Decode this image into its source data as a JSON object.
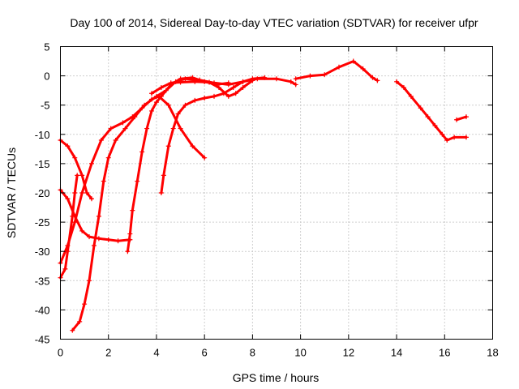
{
  "chart_data": {
    "type": "scatter",
    "title": "Day 100 of 2014, Sidereal Day-to-day VTEC variation (SDTVAR) for receiver ufpr",
    "xlabel": "GPS time / hours",
    "ylabel": "SDTVAR / TECUs",
    "xlim": [
      0,
      18
    ],
    "ylim": [
      -45,
      5
    ],
    "xticks": [
      0,
      2,
      4,
      6,
      8,
      10,
      12,
      14,
      16,
      18
    ],
    "yticks": [
      5,
      0,
      -5,
      -10,
      -15,
      -20,
      -25,
      -30,
      -35,
      -40,
      -45
    ],
    "grid": true,
    "color": "#ff0000",
    "marker": "plus",
    "series": [
      {
        "name": "track-1",
        "points": [
          [
            0,
            -11
          ],
          [
            0.3,
            -12
          ],
          [
            0.6,
            -14
          ],
          [
            0.9,
            -17
          ],
          [
            1.1,
            -20
          ],
          [
            1.3,
            -21
          ]
        ]
      },
      {
        "name": "track-2",
        "points": [
          [
            0,
            -19.5
          ],
          [
            0.3,
            -21
          ],
          [
            0.6,
            -24
          ],
          [
            0.9,
            -26.5
          ],
          [
            1.2,
            -27.5
          ],
          [
            1.6,
            -27.8
          ],
          [
            2.0,
            -28
          ],
          [
            2.4,
            -28.2
          ],
          [
            2.9,
            -28
          ]
        ]
      },
      {
        "name": "track-3",
        "points": [
          [
            0,
            -34.5
          ],
          [
            0.2,
            -33
          ],
          [
            0.3,
            -30
          ],
          [
            0.5,
            -24
          ],
          [
            0.6,
            -20
          ],
          [
            0.7,
            -17
          ]
        ]
      },
      {
        "name": "track-4",
        "points": [
          [
            0,
            -32
          ],
          [
            0.3,
            -29
          ],
          [
            0.6,
            -25
          ],
          [
            0.9,
            -20
          ],
          [
            1.3,
            -15
          ],
          [
            1.7,
            -11
          ],
          [
            2.1,
            -9
          ],
          [
            2.6,
            -8
          ],
          [
            3.0,
            -7
          ],
          [
            3.4,
            -5.5
          ],
          [
            3.8,
            -4
          ],
          [
            4.1,
            -3.5
          ],
          [
            4.5,
            -5
          ],
          [
            5.0,
            -9
          ],
          [
            5.5,
            -12
          ],
          [
            6.0,
            -14
          ]
        ]
      },
      {
        "name": "track-5",
        "points": [
          [
            0.5,
            -43.5
          ],
          [
            0.8,
            -42
          ],
          [
            1.0,
            -39
          ],
          [
            1.2,
            -35
          ],
          [
            1.4,
            -29
          ],
          [
            1.6,
            -24
          ],
          [
            1.8,
            -18
          ],
          [
            2.0,
            -14
          ],
          [
            2.3,
            -11
          ],
          [
            2.7,
            -9
          ],
          [
            3.1,
            -7
          ],
          [
            3.5,
            -5
          ],
          [
            4.0,
            -3.5
          ],
          [
            4.4,
            -2.5
          ],
          [
            4.8,
            -1
          ],
          [
            5.2,
            -0.5
          ],
          [
            5.8,
            -0.7
          ],
          [
            6.4,
            -1.2
          ],
          [
            7.0,
            -1.5
          ],
          [
            7.6,
            -1
          ],
          [
            8.2,
            -0.5
          ],
          [
            9.0,
            -0.5
          ],
          [
            9.6,
            -1
          ],
          [
            9.8,
            -1.5
          ]
        ]
      },
      {
        "name": "track-6",
        "points": [
          [
            2.8,
            -30
          ],
          [
            2.9,
            -27
          ],
          [
            3.0,
            -23
          ],
          [
            3.2,
            -18
          ],
          [
            3.4,
            -13
          ],
          [
            3.6,
            -9
          ],
          [
            3.8,
            -6
          ],
          [
            4.0,
            -4.5
          ],
          [
            4.2,
            -3.5
          ],
          [
            4.6,
            -1.5
          ],
          [
            5.0,
            -0.5
          ],
          [
            5.5,
            -0.3
          ],
          [
            6.0,
            -1
          ],
          [
            6.5,
            -1.5
          ],
          [
            7.0,
            -1.2
          ]
        ]
      },
      {
        "name": "track-7",
        "points": [
          [
            4.2,
            -20
          ],
          [
            4.3,
            -17
          ],
          [
            4.5,
            -12
          ],
          [
            4.7,
            -9
          ],
          [
            4.9,
            -6.5
          ],
          [
            5.2,
            -5
          ],
          [
            5.6,
            -4.2
          ],
          [
            6.0,
            -3.8
          ],
          [
            6.4,
            -3.5
          ],
          [
            6.8,
            -3
          ],
          [
            7.2,
            -2
          ],
          [
            7.6,
            -1
          ],
          [
            8.0,
            -0.5
          ],
          [
            8.5,
            -0.3
          ]
        ]
      },
      {
        "name": "track-8",
        "points": [
          [
            3.8,
            -3
          ],
          [
            4.2,
            -2
          ],
          [
            4.6,
            -1.2
          ],
          [
            5.0,
            -1.1
          ],
          [
            5.6,
            -1
          ],
          [
            6.2,
            -1.1
          ],
          [
            6.6,
            -2
          ],
          [
            7.0,
            -3.5
          ],
          [
            7.3,
            -3
          ],
          [
            7.6,
            -2
          ],
          [
            8.0,
            -0.8
          ]
        ]
      },
      {
        "name": "track-9",
        "points": [
          [
            9.8,
            -0.5
          ],
          [
            10.4,
            0
          ],
          [
            11.0,
            0.2
          ],
          [
            11.6,
            1.5
          ],
          [
            12.2,
            2.5
          ],
          [
            12.6,
            1.2
          ],
          [
            13.0,
            -0.3
          ],
          [
            13.2,
            -0.8
          ]
        ]
      },
      {
        "name": "track-10",
        "points": [
          [
            14.0,
            -1
          ],
          [
            14.3,
            -2
          ],
          [
            14.6,
            -3.5
          ],
          [
            15.0,
            -5.5
          ],
          [
            15.3,
            -7
          ],
          [
            15.6,
            -8.5
          ],
          [
            15.9,
            -10
          ],
          [
            16.1,
            -11
          ],
          [
            16.4,
            -10.5
          ],
          [
            16.9,
            -10.5
          ]
        ]
      },
      {
        "name": "track-11",
        "points": [
          [
            16.5,
            -7.5
          ],
          [
            16.9,
            -7
          ]
        ]
      }
    ]
  }
}
